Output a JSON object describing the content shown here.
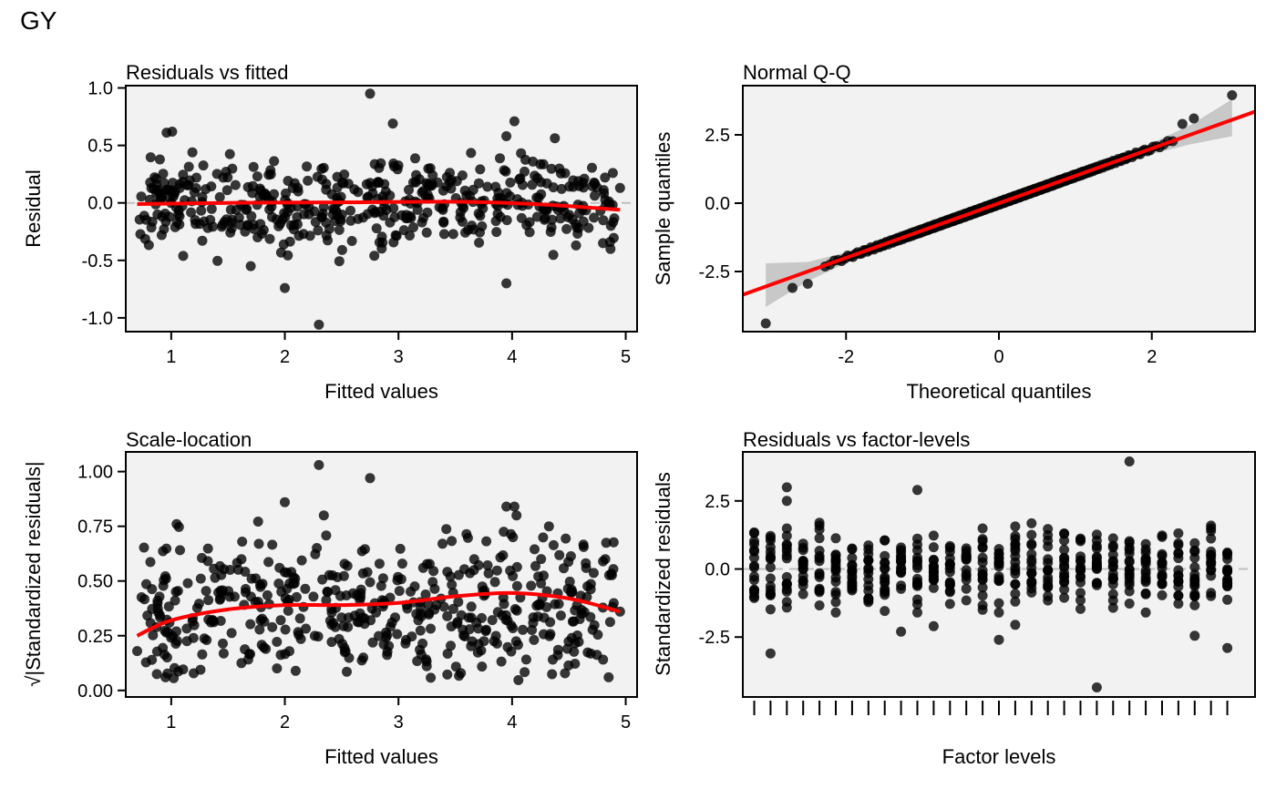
{
  "figure_title": "GY",
  "colors": {
    "panel_bg": "#f2f2f2",
    "points": "#000000",
    "smooth": "#ff0000",
    "ribbon": "#bdbdbd",
    "zero_line": "#bfbfbf"
  },
  "chart_data": [
    {
      "id": "rvf",
      "type": "scatter",
      "title": "Residuals vs fitted",
      "xlabel": "Fitted values",
      "ylabel": "Residual",
      "xlim": [
        0.6,
        5.1
      ],
      "ylim": [
        -1.12,
        1.02
      ],
      "xticks": [
        1,
        2,
        3,
        4,
        5
      ],
      "xtick_labels": [
        "1",
        "2",
        "3",
        "4",
        "5"
      ],
      "yticks": [
        -1.0,
        -0.5,
        0.0,
        0.5,
        1.0
      ],
      "ytick_labels": [
        "-1.0",
        "-0.5",
        "0.0",
        "0.5",
        "1.0"
      ],
      "reference_line": {
        "axis": "y",
        "value": 0
      },
      "smooth": {
        "x": [
          0.7,
          1.5,
          2.5,
          3.5,
          4.2,
          4.95
        ],
        "y": [
          -0.01,
          0.0,
          0.005,
          0.01,
          -0.01,
          -0.06
        ]
      },
      "outliers": [
        [
          2.75,
          0.95
        ],
        [
          2.3,
          -1.06
        ],
        [
          2.0,
          -0.74
        ],
        [
          3.95,
          0.58
        ],
        [
          4.02,
          0.71
        ],
        [
          3.95,
          -0.7
        ],
        [
          4.8,
          -0.35
        ],
        [
          4.95,
          0.13
        ],
        [
          2.95,
          0.69
        ],
        [
          1.7,
          -0.55
        ]
      ],
      "n_points": 480,
      "x_range": [
        0.72,
        4.9
      ],
      "noise_sd": 0.2,
      "seed": 11
    },
    {
      "id": "qq",
      "type": "scatter",
      "title": "Normal Q-Q",
      "xlabel": "Theoretical quantiles",
      "ylabel": "Sample quantiles",
      "xlim": [
        -3.35,
        3.35
      ],
      "ylim": [
        -4.7,
        4.3
      ],
      "xticks": [
        -2,
        0,
        2
      ],
      "xtick_labels": [
        "-2",
        "0",
        "2"
      ],
      "yticks": [
        -2.5,
        0.0,
        2.5
      ],
      "ytick_labels": [
        "-2.5",
        "0.0",
        "2.5"
      ],
      "line": {
        "slope": 1.0,
        "intercept": 0.0
      },
      "ribbon": {
        "x": [
          -3.05,
          -2.5,
          -2.0,
          -1.5,
          -1.0,
          0.0,
          1.0,
          1.5,
          2.0,
          2.5,
          3.05
        ],
        "lower": [
          -3.8,
          -2.85,
          -2.2,
          -1.6,
          -1.05,
          -0.04,
          0.95,
          1.4,
          1.8,
          2.15,
          2.45
        ],
        "upper": [
          -2.2,
          -2.15,
          -1.8,
          -1.4,
          -0.95,
          0.04,
          1.05,
          1.6,
          2.2,
          2.85,
          3.8
        ]
      },
      "outliers": [
        [
          -3.05,
          -4.4
        ],
        [
          -2.7,
          -3.1
        ],
        [
          -2.5,
          -2.95
        ],
        [
          3.05,
          3.95
        ],
        [
          2.4,
          2.9
        ],
        [
          2.55,
          3.1
        ]
      ],
      "n_points": 480
    },
    {
      "id": "sl",
      "type": "scatter",
      "title": "Scale-location",
      "xlabel": "Fitted values",
      "ylabel": "√|Standardized residuals|",
      "xlim": [
        0.6,
        5.1
      ],
      "ylim": [
        -0.03,
        1.09
      ],
      "xticks": [
        1,
        2,
        3,
        4,
        5
      ],
      "xtick_labels": [
        "1",
        "2",
        "3",
        "4",
        "5"
      ],
      "yticks": [
        0.0,
        0.25,
        0.5,
        0.75,
        1.0
      ],
      "ytick_labels": [
        "0.00",
        "0.25",
        "0.50",
        "0.75",
        "1.00"
      ],
      "smooth": {
        "x": [
          0.7,
          1.0,
          1.5,
          2.0,
          2.5,
          3.0,
          3.5,
          4.0,
          4.5,
          4.95
        ],
        "y": [
          0.25,
          0.32,
          0.37,
          0.39,
          0.39,
          0.4,
          0.43,
          0.445,
          0.42,
          0.36
        ]
      },
      "outliers": [
        [
          2.3,
          1.03
        ],
        [
          2.75,
          0.97
        ],
        [
          2.0,
          0.86
        ],
        [
          3.95,
          0.84
        ],
        [
          4.02,
          0.84
        ],
        [
          4.8,
          0.59
        ],
        [
          4.95,
          0.36
        ],
        [
          4.85,
          0.06
        ],
        [
          0.95,
          0.06
        ],
        [
          0.7,
          0.18
        ]
      ],
      "n_points": 480,
      "x_range": [
        0.72,
        4.9
      ],
      "seed": 23
    },
    {
      "id": "rfl",
      "type": "scatter",
      "title": "Residuals vs factor-levels",
      "xlabel": "Factor levels",
      "ylabel": "Standardized residuals",
      "xlim": [
        0.3,
        31.7
      ],
      "ylim": [
        -4.7,
        4.3
      ],
      "yticks": [
        -2.5,
        0.0,
        2.5
      ],
      "ytick_labels": [
        "-2.5",
        "0.0",
        "2.5"
      ],
      "n_levels": 30,
      "reference_line": {
        "axis": "y",
        "value": 0
      },
      "outliers": [
        [
          24,
          3.95
        ],
        [
          22,
          -4.35
        ],
        [
          2,
          -3.1
        ],
        [
          3,
          2.5
        ],
        [
          3,
          3.0
        ],
        [
          11,
          2.9
        ],
        [
          30,
          -2.9
        ],
        [
          28,
          -2.45
        ],
        [
          16,
          -2.6
        ],
        [
          17,
          -2.05
        ],
        [
          10,
          -2.3
        ],
        [
          12,
          -2.1
        ]
      ],
      "points_per_level": 16,
      "seed": 37
    }
  ]
}
